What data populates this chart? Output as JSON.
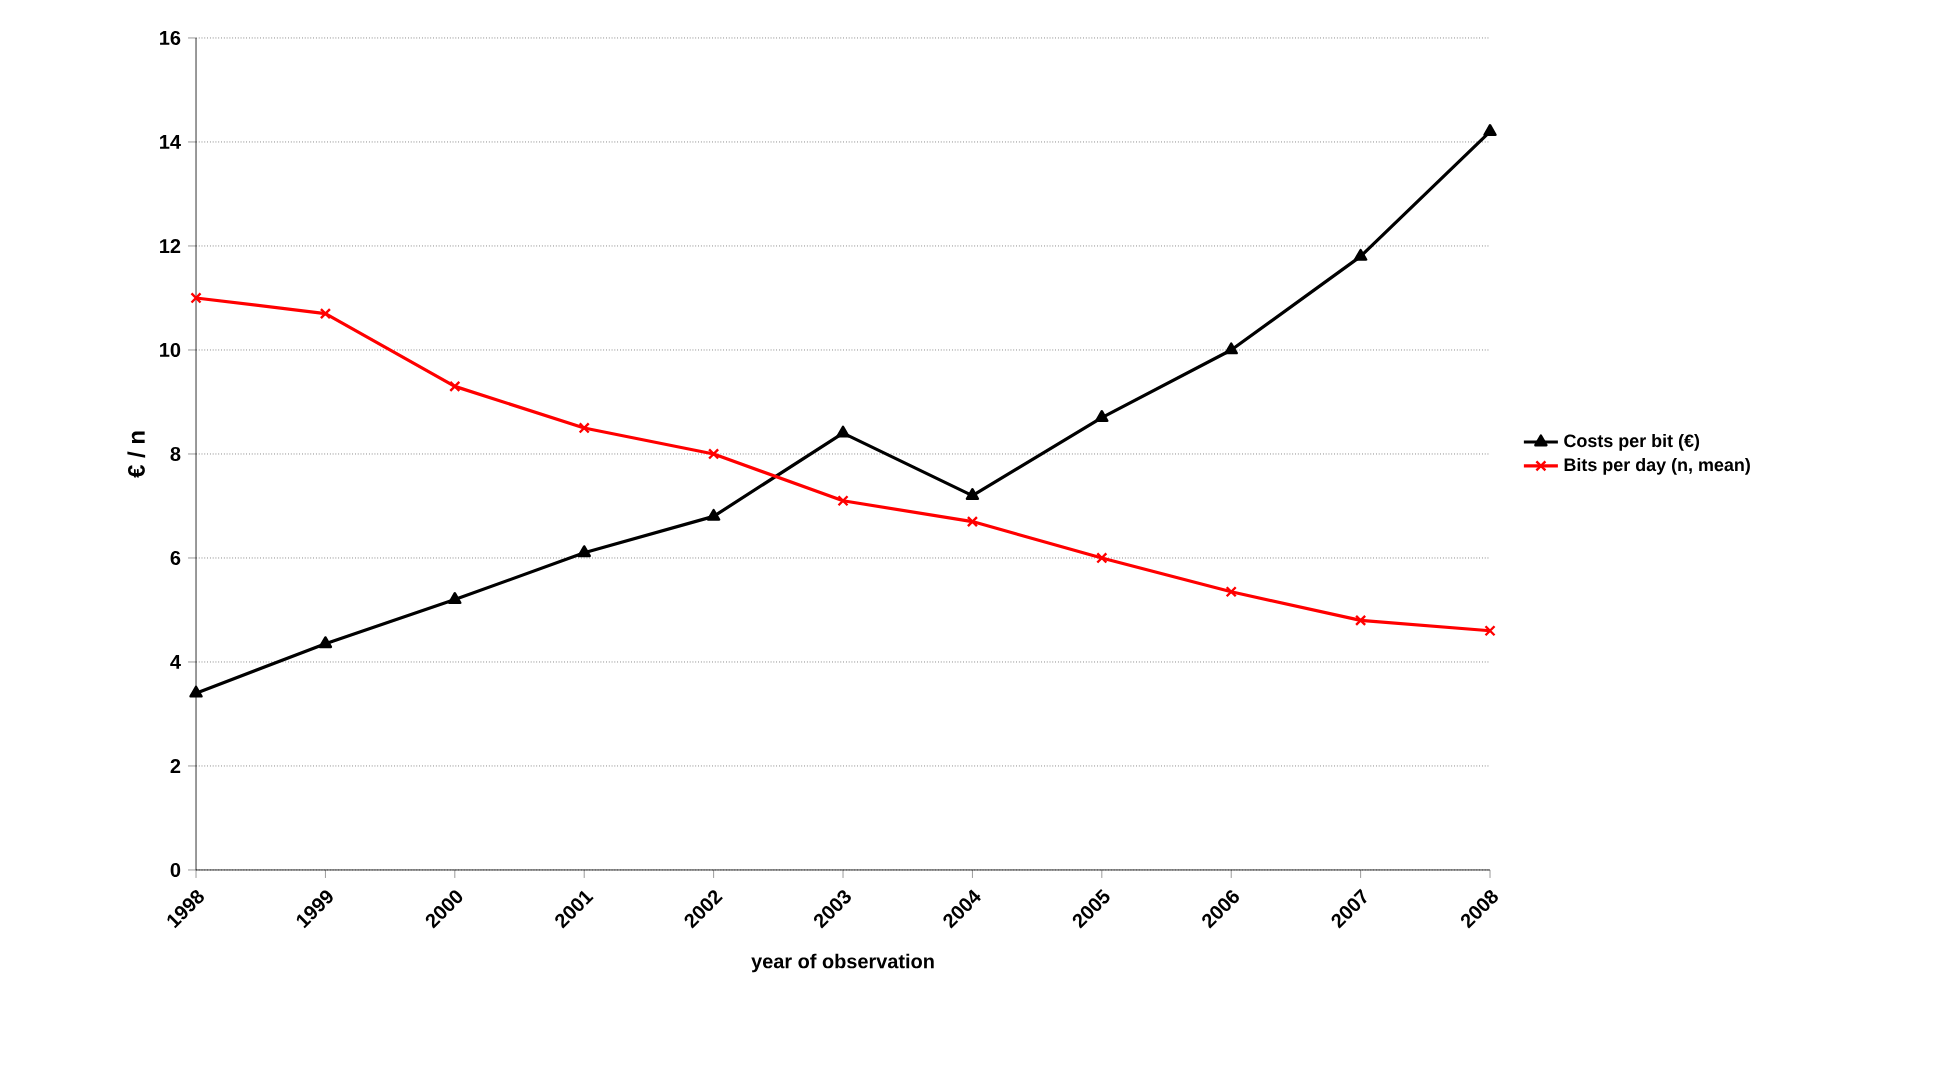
{
  "chart_data": {
    "type": "line",
    "xlabel": "year of observation",
    "ylabel": "€ / n",
    "categories": [
      "1998",
      "1999",
      "2000",
      "2001",
      "2002",
      "2003",
      "2004",
      "2005",
      "2006",
      "2007",
      "2008"
    ],
    "series": [
      {
        "name": "Costs per bit (€)",
        "color": "#000000",
        "marker": "triangle",
        "values": [
          3.4,
          4.35,
          5.2,
          6.1,
          6.8,
          8.4,
          7.2,
          8.7,
          10.0,
          11.8,
          14.2
        ]
      },
      {
        "name": "Bits per day (n, mean)",
        "color": "#ff0000",
        "marker": "cross",
        "values": [
          11.0,
          10.7,
          9.3,
          8.5,
          8.0,
          7.1,
          6.7,
          6.0,
          5.35,
          4.8,
          4.6
        ]
      }
    ],
    "ylim": [
      0,
      16
    ],
    "yticks": [
      0,
      2,
      4,
      6,
      8,
      10,
      12,
      14,
      16
    ],
    "grid": "y",
    "legend": "right",
    "line_style": "solid"
  }
}
